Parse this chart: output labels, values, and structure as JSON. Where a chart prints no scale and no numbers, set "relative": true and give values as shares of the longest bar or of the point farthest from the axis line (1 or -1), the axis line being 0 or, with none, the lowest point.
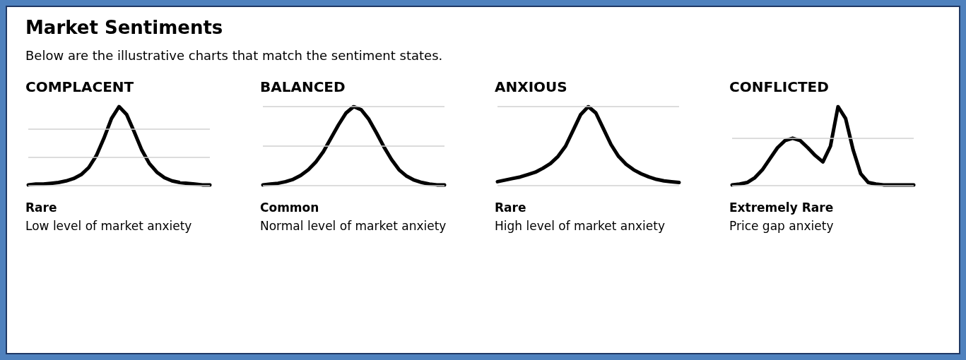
{
  "chart_data": [
    {
      "type": "other",
      "title": "Market Sentiments",
      "subtitle": "Below are the illustrative charts that match the sentiment states."
    },
    {
      "type": "line",
      "title": "COMPLACENT",
      "relative": true,
      "marker": "none",
      "line_style": "solid",
      "categories": [
        null,
        null,
        null,
        null,
        null,
        null,
        null,
        null,
        null,
        null,
        null,
        null,
        null,
        null,
        null,
        null,
        null,
        null,
        null,
        null,
        null,
        null,
        null,
        null,
        null
      ],
      "series": [
        {
          "color": "#000000",
          "values": [
            0.01,
            0.02,
            0.02,
            0.03,
            0.04,
            0.06,
            0.09,
            0.14,
            0.23,
            0.38,
            0.6,
            0.85,
            1.0,
            0.9,
            0.68,
            0.45,
            0.28,
            0.17,
            0.1,
            0.06,
            0.04,
            0.03,
            0.02,
            0.01,
            0.01
          ]
        }
      ],
      "ref_lines": [
        {
          "axis": "y",
          "value": 0,
          "color": "#d0d0d0"
        },
        {
          "axis": "y",
          "value": 0.36,
          "color": "#d0d0d0"
        },
        {
          "axis": "y",
          "value": 0.72,
          "color": "#d0d0d0"
        }
      ],
      "annotations": [
        "Rare",
        "Low level of market anxiety"
      ]
    },
    {
      "type": "line",
      "title": "BALANCED",
      "relative": true,
      "marker": "none",
      "line_style": "solid",
      "categories": [
        null,
        null,
        null,
        null,
        null,
        null,
        null,
        null,
        null,
        null,
        null,
        null,
        null,
        null,
        null,
        null,
        null,
        null,
        null,
        null,
        null,
        null,
        null,
        null,
        null
      ],
      "series": [
        {
          "color": "#000000",
          "values": [
            0.01,
            0.02,
            0.03,
            0.05,
            0.08,
            0.13,
            0.2,
            0.3,
            0.43,
            0.6,
            0.77,
            0.92,
            1.0,
            0.96,
            0.84,
            0.67,
            0.49,
            0.33,
            0.2,
            0.12,
            0.07,
            0.04,
            0.02,
            0.01,
            0.01
          ]
        }
      ],
      "ref_lines": [
        {
          "axis": "y",
          "value": 0,
          "color": "#d0d0d0"
        },
        {
          "axis": "y",
          "value": 0.5,
          "color": "#d0d0d0"
        },
        {
          "axis": "y",
          "value": 1.0,
          "color": "#d0d0d0"
        }
      ],
      "annotations": [
        "Common",
        "Normal level of market anxiety"
      ]
    },
    {
      "type": "line",
      "title": "ANXIOUS",
      "relative": true,
      "marker": "none",
      "line_style": "solid",
      "categories": [
        null,
        null,
        null,
        null,
        null,
        null,
        null,
        null,
        null,
        null,
        null,
        null,
        null,
        null,
        null,
        null,
        null,
        null,
        null,
        null,
        null,
        null,
        null,
        null,
        null
      ],
      "series": [
        {
          "color": "#000000",
          "values": [
            0.05,
            0.07,
            0.09,
            0.11,
            0.14,
            0.17,
            0.22,
            0.28,
            0.37,
            0.5,
            0.7,
            0.9,
            1.0,
            0.92,
            0.72,
            0.52,
            0.37,
            0.27,
            0.2,
            0.15,
            0.11,
            0.08,
            0.06,
            0.05,
            0.04
          ]
        }
      ],
      "ref_lines": [
        {
          "axis": "y",
          "value": 0,
          "color": "#d0d0d0"
        },
        {
          "axis": "y",
          "value": 1.0,
          "color": "#d0d0d0"
        }
      ],
      "annotations": [
        "Rare",
        "High level of market anxiety"
      ]
    },
    {
      "type": "line",
      "title": "CONFLICTED",
      "relative": true,
      "marker": "none",
      "line_style": "solid",
      "categories": [
        null,
        null,
        null,
        null,
        null,
        null,
        null,
        null,
        null,
        null,
        null,
        null,
        null,
        null,
        null,
        null,
        null,
        null,
        null,
        null,
        null,
        null,
        null,
        null,
        null
      ],
      "series": [
        {
          "color": "#000000",
          "values": [
            0.01,
            0.02,
            0.04,
            0.1,
            0.2,
            0.34,
            0.48,
            0.57,
            0.6,
            0.57,
            0.48,
            0.38,
            0.3,
            0.5,
            1.0,
            0.85,
            0.45,
            0.15,
            0.04,
            0.02,
            0.01,
            0.01,
            0.01,
            0.01,
            0.01
          ]
        }
      ],
      "ref_lines": [
        {
          "axis": "y",
          "value": 0,
          "color": "#d0d0d0"
        },
        {
          "axis": "y",
          "value": 0.6,
          "color": "#d0d0d0"
        }
      ],
      "annotations": [
        "Extremely Rare",
        "Price gap anxiety"
      ]
    }
  ]
}
